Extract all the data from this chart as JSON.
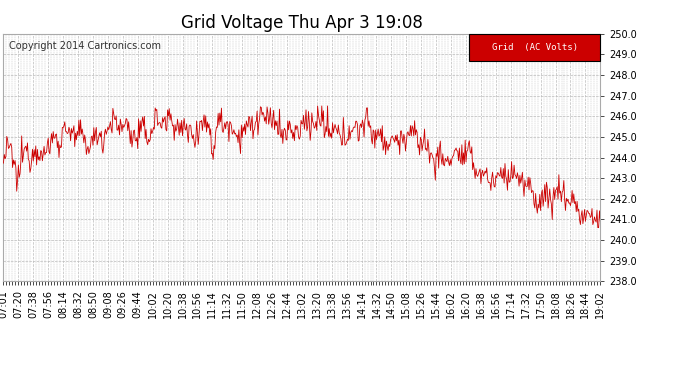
{
  "title": "Grid Voltage Thu Apr 3 19:08",
  "copyright": "Copyright 2014 Cartronics.com",
  "legend_label": "Grid  (AC Volts)",
  "legend_bg": "#cc0000",
  "legend_fg": "#ffffff",
  "line_color": "#cc0000",
  "bg_color": "#ffffff",
  "plot_bg_color": "#ffffff",
  "grid_color": "#bbbbbb",
  "ylim": [
    238.0,
    250.0
  ],
  "yticks": [
    238.0,
    239.0,
    240.0,
    241.0,
    242.0,
    243.0,
    244.0,
    245.0,
    246.0,
    247.0,
    248.0,
    249.0,
    250.0
  ],
  "xtick_labels": [
    "07:01",
    "07:20",
    "07:38",
    "07:56",
    "08:14",
    "08:32",
    "08:50",
    "09:08",
    "09:26",
    "09:44",
    "10:02",
    "10:20",
    "10:38",
    "10:56",
    "11:14",
    "11:32",
    "11:50",
    "12:08",
    "12:26",
    "12:44",
    "13:02",
    "13:20",
    "13:38",
    "13:56",
    "14:14",
    "14:32",
    "14:50",
    "15:08",
    "15:26",
    "15:44",
    "16:02",
    "16:20",
    "16:38",
    "16:56",
    "17:14",
    "17:32",
    "17:50",
    "18:08",
    "18:26",
    "18:44",
    "19:02"
  ],
  "title_fontsize": 12,
  "tick_fontsize": 7,
  "copyright_fontsize": 7
}
